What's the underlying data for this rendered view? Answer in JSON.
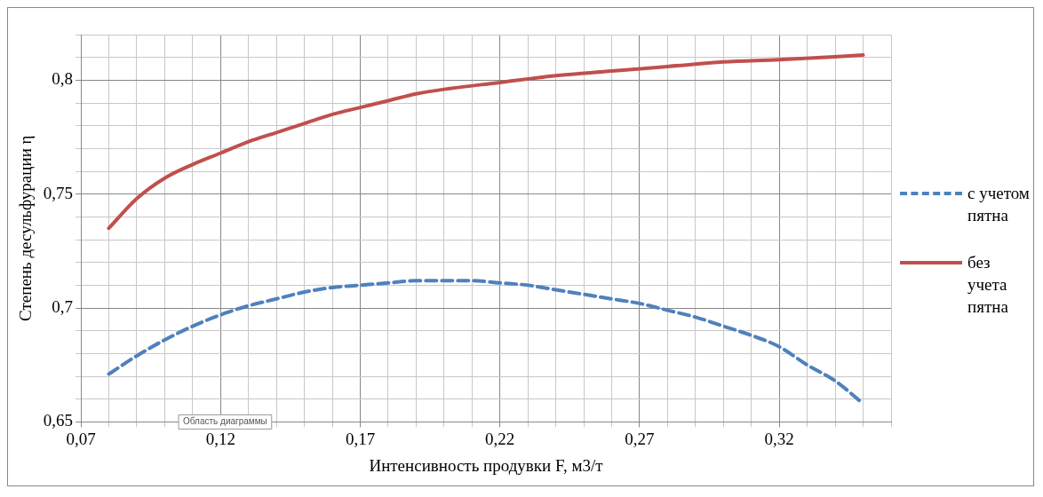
{
  "chart_data": {
    "type": "line",
    "xlabel": "Интенсивность продувки F, м3/т",
    "ylabel": "Степень десульфурации η",
    "xlim": [
      0.07,
      0.36
    ],
    "ylim": [
      0.65,
      0.82
    ],
    "xticks": [
      {
        "value": 0.07,
        "label": "0,07"
      },
      {
        "value": 0.08,
        "label": null
      },
      {
        "value": 0.09,
        "label": null
      },
      {
        "value": 0.1,
        "label": null
      },
      {
        "value": 0.11,
        "label": null
      },
      {
        "value": 0.12,
        "label": "0,12"
      },
      {
        "value": 0.13,
        "label": null
      },
      {
        "value": 0.14,
        "label": null
      },
      {
        "value": 0.15,
        "label": null
      },
      {
        "value": 0.16,
        "label": null
      },
      {
        "value": 0.17,
        "label": "0,17"
      },
      {
        "value": 0.18,
        "label": null
      },
      {
        "value": 0.19,
        "label": null
      },
      {
        "value": 0.2,
        "label": null
      },
      {
        "value": 0.21,
        "label": null
      },
      {
        "value": 0.22,
        "label": "0,22"
      },
      {
        "value": 0.23,
        "label": null
      },
      {
        "value": 0.24,
        "label": null
      },
      {
        "value": 0.25,
        "label": null
      },
      {
        "value": 0.26,
        "label": null
      },
      {
        "value": 0.27,
        "label": "0,27"
      },
      {
        "value": 0.28,
        "label": null
      },
      {
        "value": 0.29,
        "label": null
      },
      {
        "value": 0.3,
        "label": null
      },
      {
        "value": 0.31,
        "label": null
      },
      {
        "value": 0.32,
        "label": "0,32"
      },
      {
        "value": 0.33,
        "label": null
      },
      {
        "value": 0.34,
        "label": null
      },
      {
        "value": 0.35,
        "label": null
      },
      {
        "value": 0.36,
        "label": null
      }
    ],
    "yticks": [
      {
        "value": 0.65,
        "label": "0,65"
      },
      {
        "value": 0.66,
        "label": null
      },
      {
        "value": 0.67,
        "label": null
      },
      {
        "value": 0.68,
        "label": null
      },
      {
        "value": 0.69,
        "label": null
      },
      {
        "value": 0.7,
        "label": "0,7"
      },
      {
        "value": 0.71,
        "label": null
      },
      {
        "value": 0.72,
        "label": null
      },
      {
        "value": 0.73,
        "label": null
      },
      {
        "value": 0.74,
        "label": null
      },
      {
        "value": 0.75,
        "label": "0,75"
      },
      {
        "value": 0.76,
        "label": null
      },
      {
        "value": 0.77,
        "label": null
      },
      {
        "value": 0.78,
        "label": null
      },
      {
        "value": 0.79,
        "label": null
      },
      {
        "value": 0.8,
        "label": "0,8"
      },
      {
        "value": 0.81,
        "label": null
      },
      {
        "value": 0.82,
        "label": null
      }
    ],
    "grid": true,
    "legend": "right",
    "marker": "none",
    "annotations": [
      "Область диаграммы"
    ],
    "series": [
      {
        "name": "с учетом пятна",
        "color": "#4f81bd",
        "line_style": "dashed",
        "x": [
          0.08,
          0.09,
          0.1,
          0.11,
          0.12,
          0.13,
          0.14,
          0.15,
          0.16,
          0.17,
          0.18,
          0.19,
          0.2,
          0.21,
          0.22,
          0.23,
          0.24,
          0.25,
          0.26,
          0.27,
          0.28,
          0.29,
          0.3,
          0.31,
          0.32,
          0.33,
          0.34,
          0.35
        ],
        "values": [
          0.671,
          0.679,
          0.686,
          0.692,
          0.697,
          0.701,
          0.704,
          0.707,
          0.709,
          0.71,
          0.711,
          0.712,
          0.712,
          0.712,
          0.711,
          0.71,
          0.708,
          0.706,
          0.704,
          0.702,
          0.699,
          0.696,
          0.692,
          0.688,
          0.683,
          0.675,
          0.668,
          0.658
        ]
      },
      {
        "name": "без учета пятна",
        "color": "#c0504d",
        "line_style": "solid",
        "x": [
          0.08,
          0.09,
          0.1,
          0.11,
          0.12,
          0.13,
          0.14,
          0.15,
          0.16,
          0.17,
          0.18,
          0.19,
          0.2,
          0.22,
          0.24,
          0.26,
          0.28,
          0.3,
          0.32,
          0.35
        ],
        "values": [
          0.735,
          0.748,
          0.757,
          0.763,
          0.768,
          0.773,
          0.777,
          0.781,
          0.785,
          0.788,
          0.791,
          0.794,
          0.796,
          0.799,
          0.802,
          0.804,
          0.806,
          0.808,
          0.809,
          0.811
        ]
      }
    ]
  }
}
